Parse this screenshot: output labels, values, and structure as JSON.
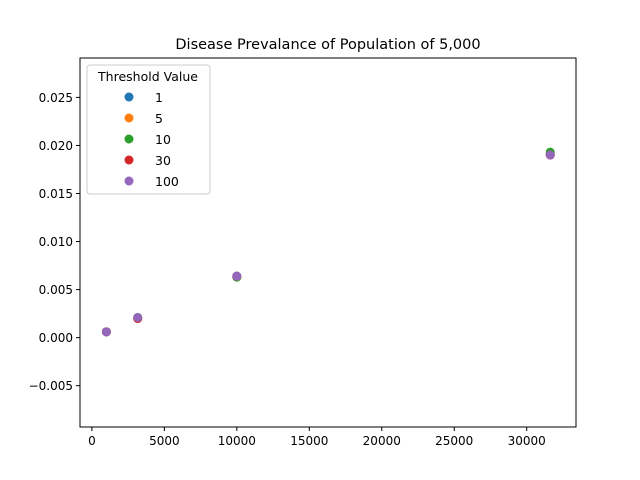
{
  "chart_data": {
    "type": "scatter",
    "title": "Disease Prevalance of Population of 5,000",
    "xlabel": "",
    "ylabel": "",
    "xlim": [
      -820,
      33400
    ],
    "ylim": [
      -0.0093,
      0.0291
    ],
    "x_ticks": [
      0,
      5000,
      10000,
      15000,
      20000,
      25000,
      30000
    ],
    "x_tick_labels": [
      "0",
      "5000",
      "10000",
      "15000",
      "20000",
      "25000",
      "30000"
    ],
    "y_ticks": [
      -0.005,
      0.0,
      0.005,
      0.01,
      0.015,
      0.02,
      0.025
    ],
    "y_tick_labels": [
      "−0.005",
      "0.000",
      "0.005",
      "0.010",
      "0.015",
      "0.020",
      "0.025"
    ],
    "grid": false,
    "legend": {
      "title": "Threshold Value",
      "placement": "top-left"
    },
    "series": [
      {
        "name": "1",
        "color": "#1f77b4",
        "x": [
          1000,
          3162,
          10000,
          31623
        ],
        "y": [
          0.0006,
          0.002,
          0.0064,
          0.0191
        ]
      },
      {
        "name": "5",
        "color": "#ff7f0e",
        "x": [
          1000,
          3162,
          10000,
          31623
        ],
        "y": [
          0.0006,
          0.002,
          0.0063,
          0.019
        ]
      },
      {
        "name": "10",
        "color": "#2ca02c",
        "x": [
          1000,
          3162,
          10000,
          31623
        ],
        "y": [
          0.0006,
          0.0021,
          0.0063,
          0.0193
        ]
      },
      {
        "name": "30",
        "color": "#d62728",
        "x": [
          1000,
          3162,
          10000,
          31623
        ],
        "y": [
          0.0006,
          0.002,
          0.0064,
          0.019
        ]
      },
      {
        "name": "100",
        "color": "#9467bd",
        "x": [
          1000,
          3162,
          10000,
          31623
        ],
        "y": [
          0.0006,
          0.0021,
          0.0064,
          0.019
        ]
      }
    ]
  }
}
